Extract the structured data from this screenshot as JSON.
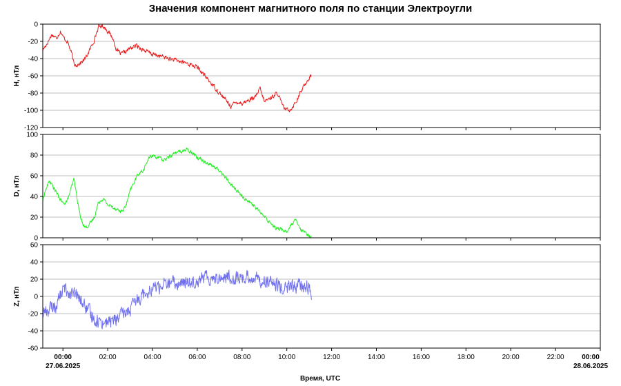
{
  "chart_data": {
    "type": "line",
    "title": "Значения компонент магнитного поля по станции Электроугли",
    "xlabel": "Время, UTC",
    "x_ticks": [
      "00:00",
      "02:00",
      "04:00",
      "06:00",
      "08:00",
      "10:00",
      "12:00",
      "14:00",
      "16:00",
      "18:00",
      "20:00",
      "22:00",
      "00:00"
    ],
    "x_tick_hours": [
      0,
      2,
      4,
      6,
      8,
      10,
      12,
      14,
      16,
      18,
      20,
      22,
      24
    ],
    "x_dates": {
      "start": "27.06.2025",
      "end": "28.06.2025"
    },
    "xlim_hours": [
      -0.9,
      24
    ],
    "grid": true,
    "panels": [
      {
        "name": "H",
        "ylabel": "H, нТл",
        "ylim": [
          -120,
          0
        ],
        "yticks": [
          0,
          -20,
          -40,
          -60,
          -80,
          -100,
          -120
        ],
        "color": "#e82020",
        "x": [
          -0.9,
          -0.7,
          -0.5,
          -0.3,
          -0.1,
          0.0,
          0.2,
          0.4,
          0.5,
          0.6,
          0.8,
          1.0,
          1.2,
          1.4,
          1.5,
          1.6,
          1.8,
          2.0,
          2.2,
          2.4,
          2.6,
          2.8,
          3.0,
          3.3,
          3.6,
          4.0,
          4.5,
          5.0,
          5.5,
          6.0,
          6.5,
          7.0,
          7.5,
          7.8,
          8.0,
          8.3,
          8.6,
          8.8,
          9.0,
          9.3,
          9.6,
          9.8,
          10.0,
          10.2,
          10.4,
          10.6,
          10.8,
          11.0,
          11.1
        ],
        "y": [
          -30,
          -22,
          -12,
          -16,
          -8,
          -15,
          -20,
          -35,
          -48,
          -47,
          -45,
          -40,
          -30,
          -18,
          -10,
          -3,
          -2,
          -8,
          -15,
          -30,
          -35,
          -32,
          -28,
          -25,
          -30,
          -35,
          -38,
          -42,
          -45,
          -50,
          -65,
          -80,
          -95,
          -90,
          -92,
          -88,
          -85,
          -75,
          -90,
          -85,
          -80,
          -95,
          -100,
          -98,
          -90,
          -80,
          -70,
          -62,
          -60
        ]
      },
      {
        "name": "D",
        "ylabel": "D, нТл",
        "ylim": [
          0,
          100
        ],
        "yticks": [
          0,
          20,
          40,
          60,
          80,
          100
        ],
        "color": "#20ee20",
        "x": [
          -0.9,
          -0.8,
          -0.6,
          -0.4,
          -0.2,
          0.0,
          0.2,
          0.4,
          0.5,
          0.6,
          0.8,
          1.0,
          1.2,
          1.4,
          1.6,
          1.8,
          2.0,
          2.2,
          2.4,
          2.6,
          2.8,
          3.0,
          3.2,
          3.4,
          3.6,
          3.8,
          4.0,
          4.5,
          5.0,
          5.5,
          5.8,
          6.0,
          6.5,
          7.0,
          7.5,
          8.0,
          8.5,
          9.0,
          9.5,
          10.0,
          10.2,
          10.4,
          10.6,
          10.8,
          11.0,
          11.1
        ],
        "y": [
          36,
          45,
          55,
          48,
          40,
          33,
          36,
          50,
          57,
          42,
          18,
          10,
          13,
          20,
          35,
          38,
          32,
          30,
          28,
          25,
          30,
          45,
          55,
          63,
          65,
          76,
          80,
          75,
          82,
          85,
          83,
          78,
          72,
          65,
          52,
          40,
          32,
          20,
          10,
          6,
          12,
          17,
          8,
          5,
          2,
          1
        ]
      },
      {
        "name": "Z",
        "ylabel": "Z, нТл",
        "ylim": [
          -60,
          60
        ],
        "yticks": [
          60,
          40,
          20,
          0,
          -20,
          -40,
          -60
        ],
        "color": "#6f6ff0",
        "x": [
          -0.9,
          -0.6,
          -0.3,
          0.0,
          0.2,
          0.4,
          0.6,
          0.8,
          1.0,
          1.2,
          1.5,
          2.0,
          2.5,
          3.0,
          3.3,
          3.6,
          4.0,
          4.5,
          5.0,
          5.5,
          6.0,
          6.5,
          7.0,
          7.5,
          8.0,
          8.5,
          9.0,
          9.5,
          10.0,
          10.5,
          11.0,
          11.1
        ],
        "y": [
          -18,
          -15,
          -10,
          8,
          7,
          3,
          0,
          -5,
          -12,
          -20,
          -28,
          -30,
          -25,
          -15,
          -5,
          5,
          10,
          13,
          15,
          15,
          20,
          22,
          22,
          22,
          22,
          22,
          18,
          12,
          10,
          12,
          10,
          -5
        ]
      }
    ]
  }
}
